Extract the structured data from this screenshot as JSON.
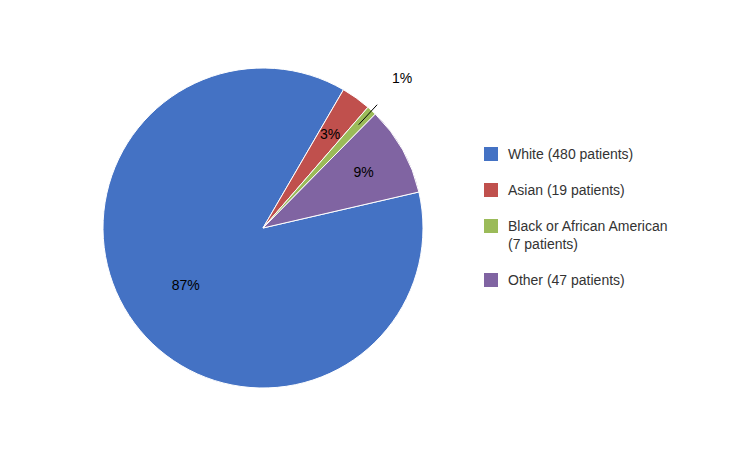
{
  "chart_data": {
    "type": "pie",
    "categories": [
      "White (480 patients)",
      "Asian (19 patients)",
      "Black or African American\n(7 patients)",
      "Other (47 patients)"
    ],
    "values": [
      87,
      3,
      1,
      9
    ],
    "value_labels": [
      "87%",
      "3%",
      "1%",
      "9%"
    ],
    "colors": [
      "#4472C4",
      "#C0504D",
      "#9BBB59",
      "#8064A2"
    ],
    "data_labels": true,
    "legend": "right"
  }
}
